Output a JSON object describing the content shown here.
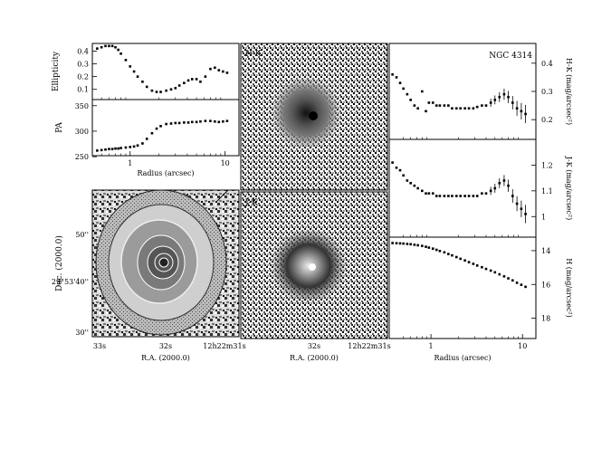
{
  "figure": {
    "object_name": "NGC 4314"
  },
  "chart_data": [
    {
      "type": "scatter",
      "id": "ellipticity",
      "xlabel": "",
      "ylabel": "Ellipticity",
      "x_scale": "log",
      "xlim": [
        0.4,
        14
      ],
      "ylim": [
        0.02,
        0.46
      ],
      "yticks": [
        "0.4",
        "0.3",
        "0.2",
        "0.1"
      ],
      "ytick_values": [
        0.4,
        0.3,
        0.2,
        0.1
      ],
      "x": [
        0.45,
        0.5,
        0.55,
        0.6,
        0.65,
        0.7,
        0.75,
        0.8,
        0.9,
        1.0,
        1.1,
        1.2,
        1.35,
        1.5,
        1.7,
        1.9,
        2.1,
        2.4,
        2.7,
        3.0,
        3.3,
        3.7,
        4.1,
        4.5,
        5.0,
        5.5,
        6.2,
        7.0,
        7.8,
        8.6,
        9.5,
        10.5
      ],
      "values": [
        0.42,
        0.43,
        0.44,
        0.44,
        0.44,
        0.43,
        0.41,
        0.38,
        0.33,
        0.28,
        0.24,
        0.2,
        0.16,
        0.12,
        0.09,
        0.08,
        0.08,
        0.09,
        0.1,
        0.11,
        0.13,
        0.15,
        0.17,
        0.18,
        0.18,
        0.16,
        0.2,
        0.26,
        0.27,
        0.25,
        0.24,
        0.23
      ]
    },
    {
      "type": "scatter",
      "id": "position_angle",
      "xlabel": "Radius (arcsec)",
      "ylabel": "PA",
      "x_scale": "log",
      "xlim": [
        0.4,
        14
      ],
      "ylim": [
        252,
        362
      ],
      "yticks": [
        "350",
        "300",
        "250"
      ],
      "ytick_values": [
        350,
        300,
        250
      ],
      "xticks": [
        "1",
        "10"
      ],
      "xtick_values": [
        1,
        10
      ],
      "x": [
        0.45,
        0.5,
        0.55,
        0.6,
        0.65,
        0.7,
        0.75,
        0.8,
        0.9,
        1.0,
        1.1,
        1.2,
        1.35,
        1.5,
        1.7,
        1.9,
        2.1,
        2.4,
        2.7,
        3.0,
        3.3,
        3.7,
        4.1,
        4.5,
        5.0,
        5.5,
        6.2,
        7.0,
        7.8,
        8.6,
        9.5,
        10.5
      ],
      "values": [
        262,
        263,
        264,
        265,
        265,
        266,
        266,
        267,
        268,
        269,
        270,
        272,
        276,
        285,
        296,
        305,
        310,
        314,
        315,
        316,
        316,
        317,
        317,
        318,
        318,
        319,
        320,
        320,
        319,
        318,
        319,
        320
      ]
    },
    {
      "type": "heatmap",
      "id": "h_band_contour_image",
      "xlabel": "R.A. (2000.0)",
      "ylabel": "Dec. (2000.0)",
      "xticks": [
        "33s",
        "32s",
        "12h22m31s"
      ],
      "yticks": [
        "50''",
        "29°53'40''",
        "30''"
      ]
    },
    {
      "type": "heatmap",
      "id": "hk_color_map",
      "label": "H-K"
    },
    {
      "type": "heatmap",
      "id": "jk_color_map",
      "label": "J-K",
      "xlabel": "R.A. (2000.0)",
      "xticks": [
        "32s",
        "12h22m31s"
      ]
    },
    {
      "type": "scatter",
      "id": "hk_profile",
      "xlabel": "",
      "ylabel": "H-K (mag/arcsec²)",
      "x_scale": "log",
      "xlim": [
        0.35,
        14
      ],
      "ylim": [
        0.13,
        0.47
      ],
      "yticks": [
        "0.4",
        "0.3",
        "0.2"
      ],
      "ytick_values": [
        0.4,
        0.3,
        0.2
      ],
      "x": [
        0.38,
        0.42,
        0.46,
        0.5,
        0.55,
        0.6,
        0.66,
        0.72,
        0.8,
        0.88,
        0.95,
        1.05,
        1.15,
        1.25,
        1.4,
        1.55,
        1.7,
        1.9,
        2.1,
        2.35,
        2.6,
        2.9,
        3.2,
        3.6,
        4.0,
        4.5,
        5.0,
        5.6,
        6.3,
        7.0,
        7.8,
        8.7,
        9.7,
        10.8
      ],
      "values": [
        0.36,
        0.35,
        0.33,
        0.31,
        0.29,
        0.27,
        0.25,
        0.24,
        0.3,
        0.23,
        0.26,
        0.26,
        0.25,
        0.25,
        0.25,
        0.25,
        0.24,
        0.24,
        0.24,
        0.24,
        0.24,
        0.24,
        0.245,
        0.25,
        0.25,
        0.26,
        0.27,
        0.28,
        0.29,
        0.28,
        0.26,
        0.24,
        0.23,
        0.22
      ]
    },
    {
      "type": "scatter",
      "id": "jk_profile",
      "xlabel": "",
      "ylabel": "J-K (mag/arcsec²)",
      "x_scale": "log",
      "xlim": [
        0.35,
        14
      ],
      "ylim": [
        0.92,
        1.3
      ],
      "yticks": [
        "1.2",
        "1.1",
        "1"
      ],
      "ytick_values": [
        1.2,
        1.1,
        1.0
      ],
      "x": [
        0.38,
        0.42,
        0.46,
        0.5,
        0.55,
        0.6,
        0.66,
        0.72,
        0.8,
        0.88,
        0.95,
        1.05,
        1.15,
        1.25,
        1.4,
        1.55,
        1.7,
        1.9,
        2.1,
        2.35,
        2.6,
        2.9,
        3.2,
        3.6,
        4.0,
        4.5,
        5.0,
        5.6,
        6.3,
        7.0,
        7.8,
        8.7,
        9.7,
        10.8
      ],
      "values": [
        1.21,
        1.19,
        1.18,
        1.16,
        1.14,
        1.13,
        1.12,
        1.11,
        1.1,
        1.09,
        1.09,
        1.09,
        1.08,
        1.08,
        1.08,
        1.08,
        1.08,
        1.08,
        1.08,
        1.08,
        1.08,
        1.08,
        1.08,
        1.09,
        1.09,
        1.1,
        1.11,
        1.13,
        1.14,
        1.12,
        1.08,
        1.05,
        1.03,
        1.01
      ]
    },
    {
      "type": "scatter",
      "id": "h_profile",
      "xlabel": "Radius (arcsec)",
      "ylabel": "H (mag/arcsec²)",
      "x_scale": "log",
      "xlim": [
        0.35,
        14
      ],
      "ylim": [
        13.2,
        19.2
      ],
      "y_inverted": true,
      "yticks": [
        "14",
        "16",
        "18"
      ],
      "ytick_values": [
        14,
        16,
        18
      ],
      "xticks": [
        "1",
        "10"
      ],
      "xtick_values": [
        1,
        10
      ],
      "x": [
        0.38,
        0.42,
        0.46,
        0.5,
        0.55,
        0.6,
        0.66,
        0.72,
        0.8,
        0.88,
        0.95,
        1.05,
        1.15,
        1.25,
        1.4,
        1.55,
        1.7,
        1.9,
        2.1,
        2.35,
        2.6,
        2.9,
        3.2,
        3.6,
        4.0,
        4.5,
        5.0,
        5.6,
        6.3,
        7.0,
        7.8,
        8.7,
        9.7,
        10.8
      ],
      "values": [
        13.55,
        13.56,
        13.57,
        13.58,
        13.6,
        13.62,
        13.65,
        13.68,
        13.72,
        13.77,
        13.82,
        13.88,
        13.95,
        14.02,
        14.1,
        14.2,
        14.28,
        14.38,
        14.48,
        14.58,
        14.68,
        14.78,
        14.88,
        14.98,
        15.08,
        15.18,
        15.28,
        15.4,
        15.52,
        15.64,
        15.76,
        15.9,
        16.02,
        16.14
      ]
    }
  ]
}
